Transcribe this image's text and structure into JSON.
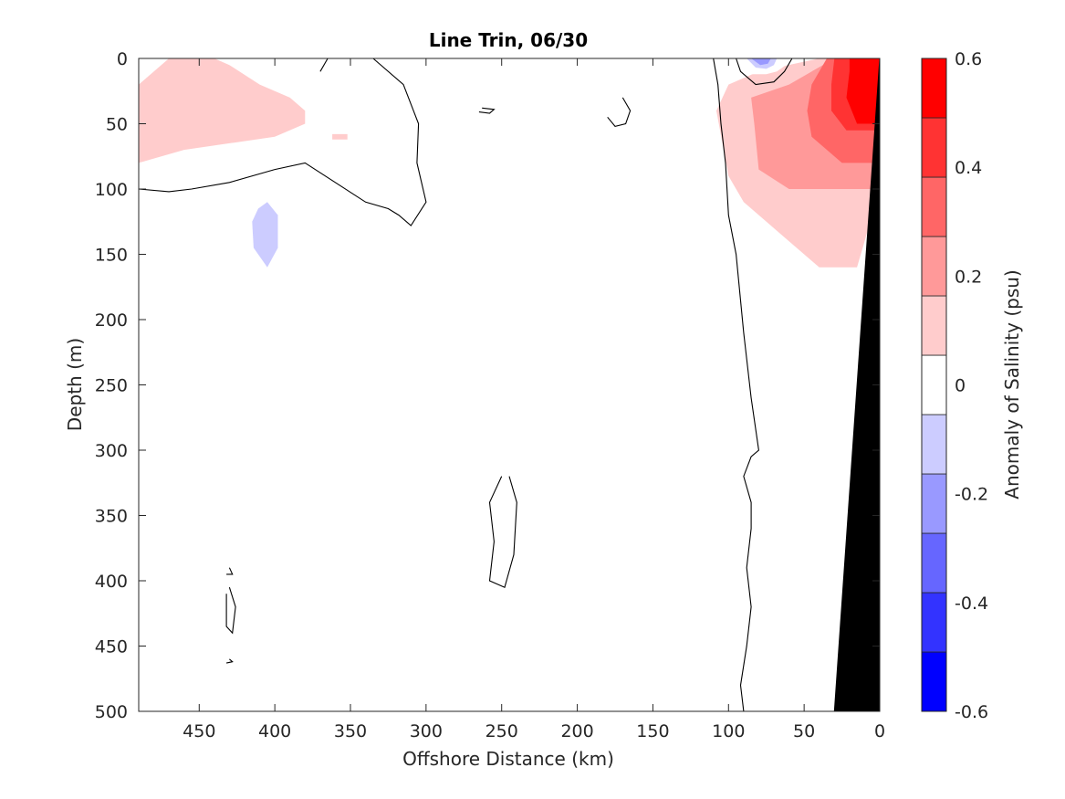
{
  "chart_data": {
    "type": "contour",
    "title": "Line Trin, 06/30",
    "xlabel": "Offshore Distance (km)",
    "ylabel": "Depth (m)",
    "xlim": [
      490,
      0
    ],
    "x_reversed": true,
    "ylim": [
      0,
      500
    ],
    "y_reversed": true,
    "x_ticks": [
      450,
      400,
      350,
      300,
      250,
      200,
      150,
      100,
      50,
      0
    ],
    "y_ticks": [
      0,
      50,
      100,
      150,
      200,
      250,
      300,
      350,
      400,
      450,
      500
    ],
    "colorbar": {
      "label": "Anomaly of Salinity (psu)",
      "range": [
        -0.6,
        0.6
      ],
      "ticks": [
        -0.6,
        -0.4,
        -0.2,
        0,
        0.2,
        0.4,
        0.6
      ],
      "tick_labels": [
        "-0.6",
        "-0.4",
        "-0.2",
        "0",
        "0.2",
        "0.4",
        "0.6"
      ],
      "levels": [
        -0.6,
        -0.5,
        -0.4,
        -0.3,
        -0.2,
        -0.1,
        0.1,
        0.2,
        0.3,
        0.4,
        0.5,
        0.6
      ],
      "colors": [
        "#0000ff",
        "#3333ff",
        "#6666ff",
        "#9999ff",
        "#ccccff",
        "#ffffff",
        "#ffcccc",
        "#ff9999",
        "#ff6666",
        "#ff3333",
        "#ff0000"
      ]
    },
    "regions": [
      {
        "name": "positive-anomaly-nearshore-0.1",
        "value": 0.1,
        "points": [
          [
            100,
            20
          ],
          [
            80,
            10
          ],
          [
            40,
            0
          ],
          [
            0,
            0
          ],
          [
            0,
            100
          ],
          [
            15,
            160
          ],
          [
            40,
            160
          ],
          [
            70,
            130
          ],
          [
            90,
            110
          ],
          [
            100,
            90
          ],
          [
            108,
            40
          ]
        ]
      },
      {
        "name": "positive-anomaly-nearshore-0.2",
        "value": 0.2,
        "points": [
          [
            85,
            30
          ],
          [
            60,
            20
          ],
          [
            30,
            0
          ],
          [
            0,
            0
          ],
          [
            0,
            100
          ],
          [
            40,
            100
          ],
          [
            60,
            100
          ],
          [
            80,
            85
          ],
          [
            83,
            50
          ]
        ]
      },
      {
        "name": "positive-anomaly-nearshore-0.3",
        "value": 0.3,
        "points": [
          [
            45,
            20
          ],
          [
            35,
            0
          ],
          [
            0,
            0
          ],
          [
            0,
            80
          ],
          [
            25,
            80
          ],
          [
            45,
            60
          ],
          [
            48,
            40
          ]
        ]
      },
      {
        "name": "positive-anomaly-nearshore-0.4",
        "value": 0.4,
        "points": [
          [
            32,
            20
          ],
          [
            30,
            0
          ],
          [
            0,
            0
          ],
          [
            0,
            55
          ],
          [
            22,
            55
          ],
          [
            32,
            40
          ]
        ]
      },
      {
        "name": "positive-anomaly-nearshore-0.5",
        "value": 0.5,
        "points": [
          [
            20,
            10
          ],
          [
            20,
            0
          ],
          [
            0,
            0
          ],
          [
            0,
            50
          ],
          [
            15,
            50
          ],
          [
            22,
            30
          ]
        ]
      },
      {
        "name": "positive-anomaly-offshore-0.1",
        "value": 0.1,
        "points": [
          [
            490,
            20
          ],
          [
            470,
            0
          ],
          [
            440,
            0
          ],
          [
            430,
            5
          ],
          [
            410,
            20
          ],
          [
            390,
            30
          ],
          [
            380,
            40
          ],
          [
            380,
            50
          ],
          [
            400,
            60
          ],
          [
            460,
            70
          ],
          [
            490,
            80
          ]
        ]
      },
      {
        "name": "positive-anomaly-small-0.1",
        "value": 0.1,
        "points": [
          [
            362,
            58
          ],
          [
            352,
            58
          ],
          [
            352,
            62
          ],
          [
            362,
            62
          ]
        ]
      },
      {
        "name": "negative-anomaly-deep-offshore-0.1",
        "value": -0.1,
        "points": [
          [
            435,
            140
          ],
          [
            450,
            137
          ],
          [
            475,
            140
          ],
          [
            480,
            155
          ],
          [
            470,
            170
          ],
          [
            450,
            170
          ],
          [
            435,
            165
          ],
          [
            430,
            155
          ]
        ]
      },
      {
        "name": "negative-anomaly-large-0.1",
        "value": -0.1,
        "points": [
          [
            400,
            90
          ],
          [
            385,
            105
          ],
          [
            378,
            130
          ],
          [
            380,
            155
          ],
          [
            387,
            175
          ],
          [
            400,
            190
          ],
          [
            418,
            185
          ],
          [
            432,
            165
          ],
          [
            430,
            135
          ],
          [
            420,
            110
          ]
        ]
      },
      {
        "name": "negative-anomaly-core-0.2",
        "value": -0.2,
        "points": [
          [
            405,
            110
          ],
          [
            398,
            120
          ],
          [
            398,
            145
          ],
          [
            405,
            160
          ],
          [
            414,
            145
          ],
          [
            415,
            125
          ],
          [
            411,
            115
          ]
        ]
      },
      {
        "name": "negative-anomaly-300km-0.1",
        "value": -0.1,
        "points": [
          [
            300,
            60
          ],
          [
            285,
            70
          ],
          [
            283,
            100
          ],
          [
            292,
            130
          ],
          [
            305,
            135
          ],
          [
            312,
            110
          ],
          [
            310,
            80
          ]
        ]
      },
      {
        "name": "negative-anomaly-200km-0.1",
        "value": -0.1,
        "points": [
          [
            188,
            62
          ],
          [
            182,
            80
          ],
          [
            188,
            105
          ],
          [
            197,
            118
          ],
          [
            212,
            110
          ],
          [
            213,
            80
          ],
          [
            200,
            65
          ]
        ]
      },
      {
        "name": "negative-anomaly-140km-0.1",
        "value": -0.1,
        "points": [
          [
            128,
            57
          ],
          [
            138,
            65
          ],
          [
            145,
            90
          ],
          [
            145,
            115
          ],
          [
            132,
            130
          ],
          [
            122,
            130
          ],
          [
            116,
            110
          ],
          [
            118,
            80
          ]
        ]
      },
      {
        "name": "negative-anomaly-surface-0.1",
        "value": -0.1,
        "points": [
          [
            305,
            0
          ],
          [
            300,
            5
          ],
          [
            280,
            8
          ],
          [
            250,
            10
          ],
          [
            220,
            10
          ],
          [
            210,
            5
          ],
          [
            205,
            0
          ]
        ]
      },
      {
        "name": "negative-anomaly-surface-100km-0.1",
        "value": -0.1,
        "points": [
          [
            98,
            0
          ],
          [
            92,
            8
          ],
          [
            85,
            12
          ],
          [
            75,
            12
          ],
          [
            68,
            10
          ],
          [
            62,
            5
          ],
          [
            62,
            0
          ]
        ]
      },
      {
        "name": "negative-anomaly-surface-100km-0.2",
        "value": -0.2,
        "points": [
          [
            88,
            0
          ],
          [
            82,
            7
          ],
          [
            75,
            8
          ],
          [
            70,
            5
          ],
          [
            68,
            0
          ]
        ]
      },
      {
        "name": "negative-anomaly-surface-100km-0.3",
        "value": -0.3,
        "points": [
          [
            85,
            0
          ],
          [
            79,
            5
          ],
          [
            74,
            4
          ],
          [
            72,
            0
          ]
        ]
      }
    ],
    "zero_contours": [
      {
        "name": "zero-contour-main",
        "points": [
          [
            490,
            100
          ],
          [
            470,
            102
          ],
          [
            455,
            100
          ],
          [
            430,
            95
          ],
          [
            400,
            85
          ],
          [
            380,
            80
          ],
          [
            360,
            95
          ],
          [
            340,
            110
          ],
          [
            325,
            115
          ],
          [
            318,
            120
          ],
          [
            310,
            128
          ],
          [
            300,
            110
          ],
          [
            306,
            80
          ],
          [
            305,
            50
          ],
          [
            315,
            20
          ],
          [
            335,
            0
          ]
        ]
      },
      {
        "name": "zero-contour-nearshore",
        "points": [
          [
            110,
            0
          ],
          [
            107,
            20
          ],
          [
            105,
            50
          ],
          [
            102,
            80
          ],
          [
            100,
            120
          ],
          [
            95,
            150
          ],
          [
            90,
            210
          ],
          [
            85,
            260
          ],
          [
            80,
            300
          ],
          [
            85,
            305
          ],
          [
            90,
            320
          ],
          [
            85,
            340
          ],
          [
            85,
            360
          ],
          [
            88,
            390
          ],
          [
            85,
            420
          ],
          [
            88,
            450
          ],
          [
            92,
            480
          ],
          [
            90,
            500
          ]
        ]
      },
      {
        "name": "zero-contour-deep-lens",
        "points": [
          [
            245,
            320
          ],
          [
            240,
            340
          ],
          [
            242,
            380
          ],
          [
            248,
            405
          ],
          [
            258,
            400
          ],
          [
            255,
            370
          ],
          [
            258,
            340
          ],
          [
            250,
            320
          ]
        ]
      },
      {
        "name": "zero-contour-small-1",
        "points": [
          [
            170,
            30
          ],
          [
            165,
            40
          ],
          [
            168,
            50
          ],
          [
            175,
            52
          ],
          [
            180,
            45
          ]
        ]
      },
      {
        "name": "zero-contour-small-2",
        "points": [
          [
            263,
            38
          ],
          [
            255,
            39
          ],
          [
            258,
            42
          ],
          [
            265,
            41
          ]
        ]
      },
      {
        "name": "zero-contour-small-3",
        "points": [
          [
            430,
            405
          ],
          [
            426,
            420
          ],
          [
            428,
            440
          ],
          [
            432,
            435
          ],
          [
            432,
            410
          ]
        ]
      },
      {
        "name": "zero-contour-small-4",
        "points": [
          [
            430,
            390
          ],
          [
            428,
            395
          ],
          [
            432,
            395
          ]
        ]
      },
      {
        "name": "zero-contour-small-5",
        "points": [
          [
            430,
            460
          ],
          [
            428,
            462
          ],
          [
            432,
            463
          ]
        ]
      },
      {
        "name": "zero-contour-surface-1",
        "points": [
          [
            370,
            10
          ],
          [
            365,
            0
          ],
          [
            358,
            0
          ]
        ]
      },
      {
        "name": "zero-contour-surface-2",
        "points": [
          [
            95,
            0
          ],
          [
            92,
            10
          ],
          [
            82,
            20
          ],
          [
            70,
            18
          ],
          [
            63,
            10
          ],
          [
            58,
            0
          ]
        ]
      }
    ],
    "bathymetry": {
      "points": [
        [
          0,
          0
        ],
        [
          30,
          500
        ],
        [
          0,
          500
        ]
      ]
    }
  }
}
